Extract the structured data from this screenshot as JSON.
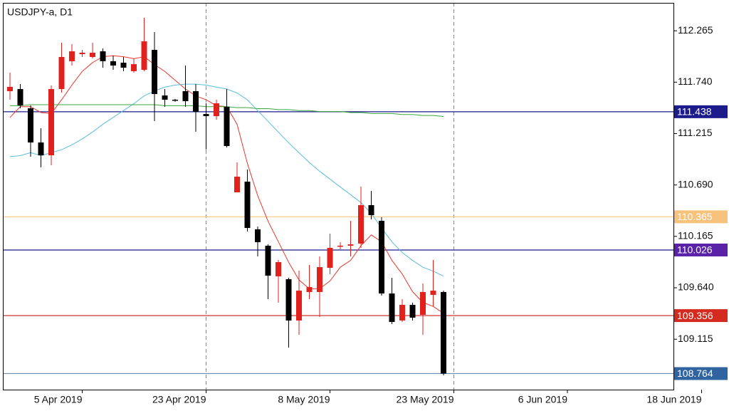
{
  "chart_data": {
    "type": "candlestick",
    "title": "USDJPY-a, D1",
    "categories": [
      null,
      null,
      null,
      null,
      null,
      null,
      null,
      "5 Apr 2019",
      null,
      null,
      null,
      null,
      null,
      null,
      null,
      null,
      null,
      null,
      null,
      "23 Apr 2019",
      null,
      null,
      null,
      null,
      null,
      null,
      null,
      null,
      null,
      null,
      null,
      "8 May 2019",
      null,
      null,
      null,
      null,
      null,
      null,
      null,
      null,
      null,
      null,
      null,
      "23 May 2019",
      null,
      null,
      null,
      null,
      null,
      null,
      null,
      null,
      null,
      null,
      "6 Jun 2019",
      null,
      null,
      null,
      null,
      null,
      null,
      null,
      null,
      null,
      null,
      null,
      null,
      "18 Jun 2019"
    ],
    "open": [
      111.648,
      111.67,
      111.473,
      111.124,
      110.993,
      111.67,
      111.954,
      112.026,
      111.997,
      112.055,
      111.954,
      111.939,
      111.852,
      111.866,
      112.07,
      111.604,
      111.561,
      111.648,
      111.648,
      111.415,
      111.393,
      111.488,
      110.615,
      110.724,
      110.237,
      110.07,
      109.757,
      109.728,
      109.306,
      109.597,
      109.597,
      109.844,
      110.062,
      110.07,
      110.091,
      110.484,
      110.324,
      109.582,
      109.306,
      109.466,
      109.364,
      109.568,
      109.597,
      null,
      null,
      null,
      null,
      null,
      null,
      null,
      null,
      null,
      null,
      null,
      null,
      null,
      null,
      null,
      null,
      null,
      null,
      null,
      null,
      null,
      null,
      null,
      null,
      null
    ],
    "high": [
      111.837,
      111.721,
      111.503,
      111.27,
      111.706,
      112.143,
      112.128,
      112.07,
      112.143,
      112.084,
      112.012,
      111.997,
      111.983,
      112.397,
      112.252,
      111.67,
      111.57,
      111.91,
      111.721,
      111.524,
      111.561,
      111.67,
      110.921,
      110.848,
      110.266,
      110.084,
      109.924,
      109.742,
      109.815,
      109.873,
      109.96,
      110.193,
      110.106,
      110.324,
      110.673,
      110.63,
      110.36,
      109.742,
      109.524,
      109.488,
      109.684,
      109.924,
      109.611,
      null,
      null,
      null,
      null,
      null,
      null,
      null,
      null,
      null,
      null,
      null,
      null,
      null,
      null,
      null,
      null,
      null,
      null,
      null,
      null,
      null,
      null,
      null,
      null,
      null
    ],
    "low": [
      111.561,
      111.473,
      110.979,
      110.87,
      110.892,
      111.633,
      111.91,
      111.997,
      111.983,
      111.888,
      111.866,
      111.852,
      111.837,
      111.852,
      111.342,
      111.488,
      111.54,
      111.488,
      111.233,
      111.052,
      111.357,
      111.073,
      110.615,
      110.215,
      109.96,
      109.524,
      109.488,
      109.029,
      109.16,
      109.524,
      109.342,
      109.779,
      110.033,
      109.96,
      110.048,
      110.339,
      109.56,
      109.269,
      109.291,
      109.306,
      109.16,
      109.451,
      108.746,
      null,
      null,
      null,
      null,
      null,
      null,
      null,
      null,
      null,
      null,
      null,
      null,
      null,
      null,
      null,
      null,
      null,
      null,
      null,
      null,
      null,
      null,
      null,
      null,
      null
    ],
    "close": [
      111.692,
      111.503,
      111.124,
      110.993,
      111.67,
      111.997,
      112.055,
      112.041,
      112.041,
      111.954,
      111.91,
      111.888,
      111.924,
      112.157,
      111.619,
      111.561,
      111.553,
      111.546,
      111.437,
      111.393,
      111.524,
      111.088,
      110.775,
      110.251,
      110.106,
      109.764,
      109.902,
      109.306,
      109.611,
      109.648,
      109.851,
      110.048,
      110.07,
      110.084,
      110.484,
      110.382,
      109.582,
      109.291,
      109.466,
      109.335,
      109.597,
      109.611,
      108.764,
      null,
      null,
      null,
      null,
      null,
      null,
      null,
      null,
      null,
      null,
      null,
      null,
      null,
      null,
      null,
      null,
      null,
      null,
      null,
      null,
      null,
      null,
      null,
      null,
      null
    ],
    "up_color": "#e3211c",
    "down_color": "#000000",
    "lines": [
      {
        "color": "#e8372c",
        "values": [
          111.38,
          111.49,
          111.49,
          111.43,
          111.42,
          111.56,
          111.71,
          111.85,
          111.94,
          112.0,
          112.01,
          112.0,
          111.98,
          112.0,
          111.92,
          111.85,
          111.76,
          111.67,
          111.6,
          111.56,
          111.5,
          111.49,
          111.31,
          110.91,
          110.58,
          110.32,
          110.11,
          109.9,
          109.72,
          109.63,
          109.63,
          109.71,
          109.85,
          109.92,
          110.07,
          110.18,
          110.11,
          109.92,
          109.78,
          109.6,
          109.49,
          109.45,
          109.38,
          null,
          null,
          null,
          null,
          null,
          null,
          null,
          null,
          null,
          null,
          null,
          null,
          null,
          null,
          null,
          null,
          null,
          null,
          null,
          null,
          null,
          null,
          null,
          null,
          null
        ]
      },
      {
        "color": "#5bbcdc",
        "values": [
          110.98,
          110.99,
          111.02,
          110.99,
          111.02,
          111.05,
          111.1,
          111.16,
          111.23,
          111.31,
          111.38,
          111.45,
          111.52,
          111.6,
          111.65,
          111.69,
          111.71,
          111.72,
          111.72,
          111.71,
          111.69,
          111.67,
          111.63,
          111.56,
          111.45,
          111.34,
          111.23,
          111.12,
          111.02,
          110.92,
          110.83,
          110.75,
          110.67,
          110.59,
          110.51,
          110.4,
          110.25,
          110.11,
          110.0,
          109.92,
          109.85,
          109.81,
          109.76,
          null,
          null,
          null,
          null,
          null,
          null,
          null,
          null,
          null,
          null,
          null,
          null,
          null,
          null,
          null,
          null,
          null,
          null,
          null,
          null,
          null,
          null,
          null,
          null,
          null
        ]
      },
      {
        "color": "#3da83d",
        "values": [
          111.5,
          111.5,
          111.51,
          111.51,
          111.51,
          111.51,
          111.51,
          111.51,
          111.51,
          111.51,
          111.51,
          111.51,
          111.51,
          111.51,
          111.51,
          111.5,
          111.5,
          111.5,
          111.5,
          111.49,
          111.49,
          111.49,
          111.48,
          111.48,
          111.47,
          111.47,
          111.46,
          111.46,
          111.45,
          111.45,
          111.44,
          111.44,
          111.44,
          111.43,
          111.43,
          111.42,
          111.42,
          111.42,
          111.41,
          111.41,
          111.4,
          111.4,
          111.39,
          null,
          null,
          null,
          null,
          null,
          null,
          null,
          null,
          null,
          null,
          null,
          null,
          null,
          null,
          null,
          null,
          null,
          null,
          null,
          null,
          null,
          null,
          null,
          null,
          null
        ]
      }
    ],
    "levels": [
      {
        "value": 111.438,
        "color": "#1c1c8c",
        "box_color": "#1c1c8c"
      },
      {
        "value": 110.365,
        "color": "#f9c98a",
        "box_color": "#f7c27c"
      },
      {
        "value": 110.026,
        "color": "#1c1c8c",
        "box_color": "#5a22a8"
      },
      {
        "value": 109.356,
        "color": "#c8201a",
        "box_color": "#d42a1f"
      },
      {
        "value": 108.764,
        "color": "#6a8cb0",
        "box_color": "#2f64a0"
      }
    ],
    "ylim": [
      108.6,
      112.55
    ],
    "yticks": [
      112.265,
      {
        "value": 111.74,
        "label": "111.740"
      },
      111.215,
      {
        "value": 110.69,
        "label": "110.690"
      },
      110.165,
      {
        "value": 109.64,
        "label": "109.640"
      },
      109.115
    ]
  }
}
